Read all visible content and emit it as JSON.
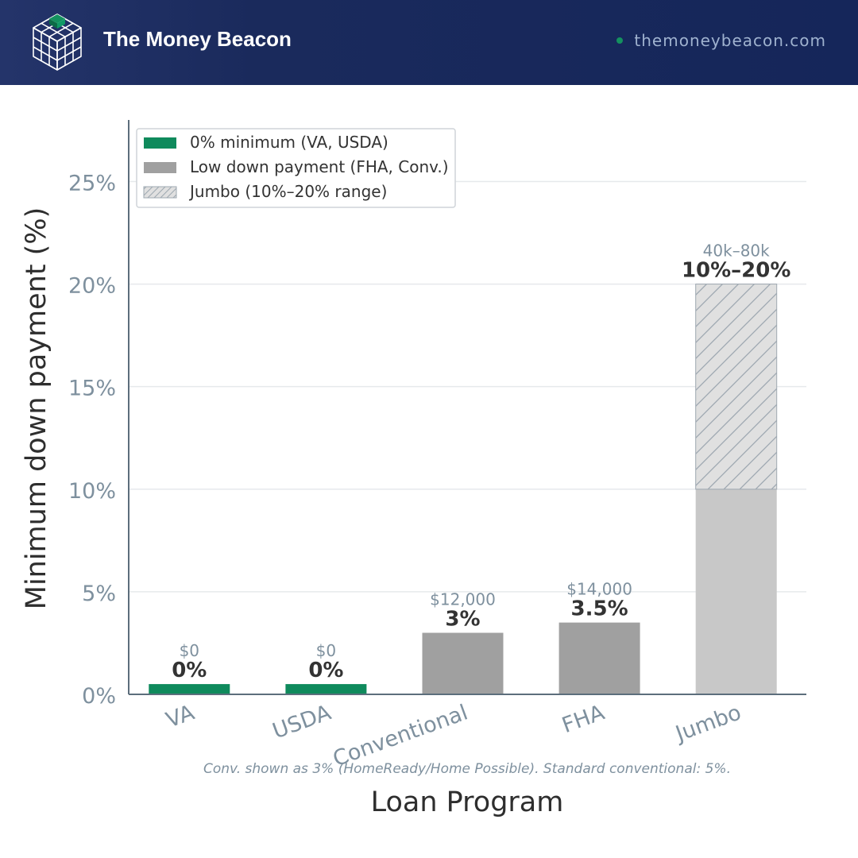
{
  "header": {
    "brand": "The Money Beacon",
    "site": "themoneybeacon.com",
    "logo_icon": "cube-grid-icon"
  },
  "colors": {
    "header_bg": "#1a2a5c",
    "accent_green": "#0f8a5c",
    "low_gray": "#a0a0a0",
    "jumbo_base_gray": "#c8c8c8",
    "jumbo_hatch_fill": "#e0e0e0",
    "axis_text": "#7e909e",
    "label_dark": "#333333"
  },
  "chart_data": {
    "type": "bar",
    "xlabel": "Loan Program",
    "ylabel": "Minimum down payment (%)",
    "ylim": [
      0,
      28
    ],
    "yticks": [
      0,
      5,
      10,
      15,
      20,
      25
    ],
    "ytick_labels": [
      "0%",
      "5%",
      "10%",
      "15%",
      "20%",
      "25%"
    ],
    "grid": true,
    "legend_position": "top-left",
    "legend": [
      {
        "label": "0% minimum (VA, USDA)",
        "style": "green"
      },
      {
        "label": "Low down payment (FHA, Conv.)",
        "style": "gray"
      },
      {
        "label": "Jumbo (10%–20% range)",
        "style": "hatch"
      }
    ],
    "categories": [
      "VA",
      "USDA",
      "Conventional",
      "FHA",
      "Jumbo"
    ],
    "bars": [
      {
        "category": "VA",
        "value": 0,
        "display": 0.5,
        "pct_label": "0%",
        "amount_label": "$0",
        "style": "green"
      },
      {
        "category": "USDA",
        "value": 0,
        "display": 0.5,
        "pct_label": "0%",
        "amount_label": "$0",
        "style": "green"
      },
      {
        "category": "Conventional",
        "value": 3,
        "pct_label": "3%",
        "amount_label": "$12,000",
        "style": "gray"
      },
      {
        "category": "FHA",
        "value": 3.5,
        "pct_label": "3.5%",
        "amount_label": "$14,000",
        "style": "gray"
      },
      {
        "category": "Jumbo",
        "value": 10,
        "range_high": 20,
        "pct_label": "10%–20%",
        "amount_label": "40k–80k",
        "style": "jumbo"
      }
    ],
    "footnote": "Conv. shown as 3% (HomeReady/Home Possible). Standard conventional: 5%."
  }
}
